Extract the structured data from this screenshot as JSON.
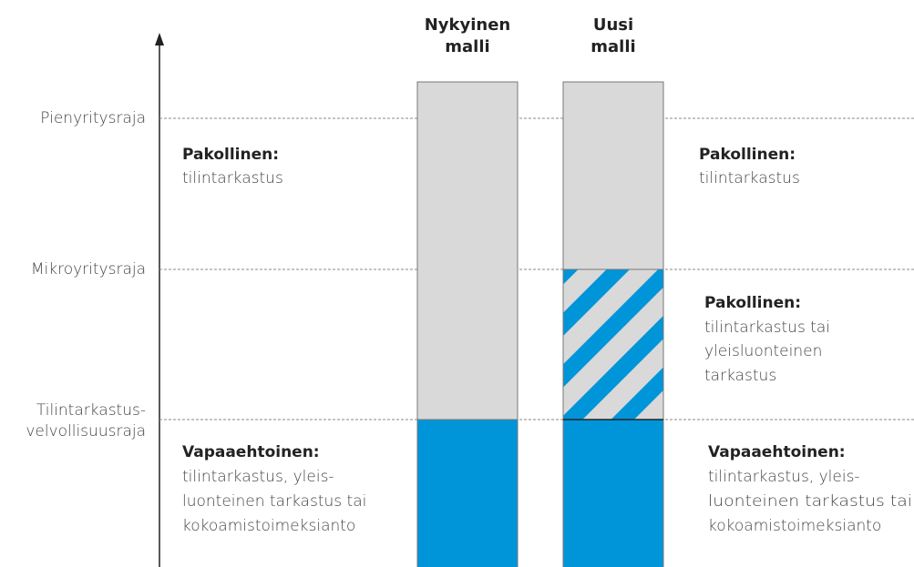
{
  "levels": [
    {
      "label": [
        "Pienyritysraja"
      ]
    },
    {
      "label": [
        "Mikroyritysraja"
      ]
    },
    {
      "label": [
        "Tilintarkastus-",
        "velvollisuusraja"
      ]
    }
  ],
  "columns": [
    {
      "header": [
        "Nykyinen",
        "malli"
      ]
    },
    {
      "header": [
        "Uusi",
        "malli"
      ]
    }
  ],
  "blocks": {
    "left_top": {
      "title": "Pakollinen:",
      "lines": [
        "tilintarkastus"
      ]
    },
    "right_top": {
      "title": "Pakollinen:",
      "lines": [
        "tilintarkastus"
      ]
    },
    "right_middle": {
      "title": "Pakollinen:",
      "lines": [
        "tilintarkastus tai",
        "yleisluonteinen",
        "tarkastus"
      ]
    },
    "left_bottom": {
      "title": "Vapaaehtoinen:",
      "lines": [
        "tilintarkastus, yleis-",
        "luonteinen tarkastus tai",
        "kokoamistoimeksianto"
      ]
    },
    "right_bottom": {
      "title": "Vapaaehtoinen:",
      "lines": [
        "tilintarkastus, yleis-",
        "luonteinen tarkastus tai",
        "kokoamistoimeksianto"
      ]
    }
  }
}
